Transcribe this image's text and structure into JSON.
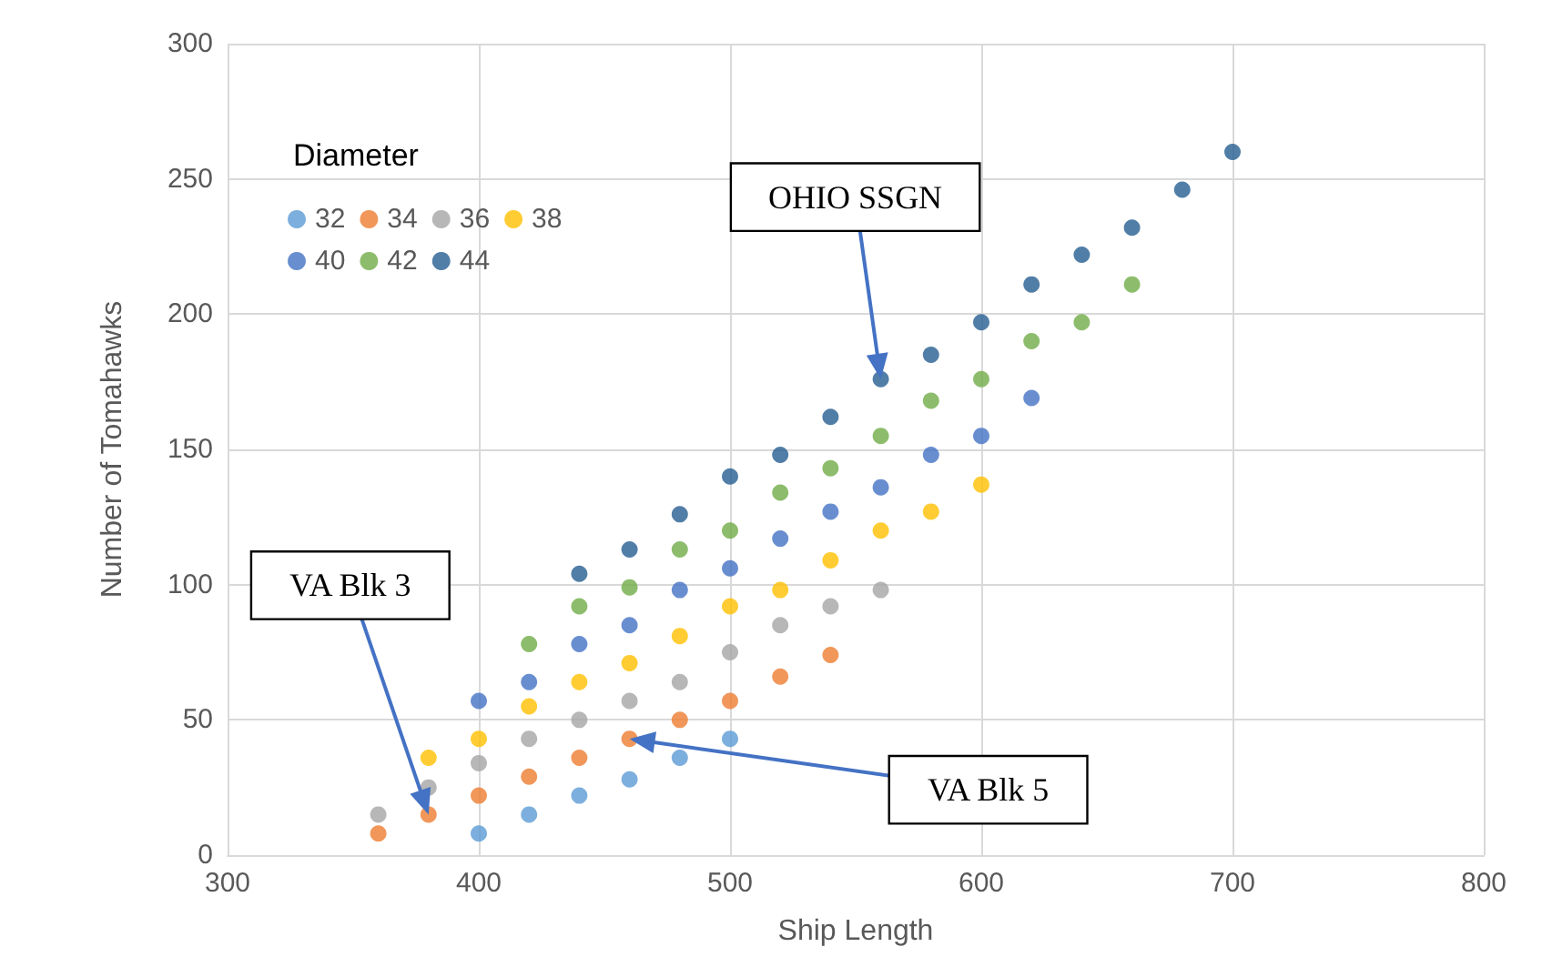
{
  "chart_data": {
    "type": "scatter",
    "xlabel": "Ship Length",
    "ylabel": "Number of Tomahawks",
    "legend_title": "Diameter",
    "xlim": [
      300,
      800
    ],
    "xticks": [
      300,
      400,
      500,
      600,
      700,
      800
    ],
    "ylim": [
      0,
      300
    ],
    "yticks": [
      0,
      50,
      100,
      150,
      200,
      250,
      300
    ],
    "grid": true,
    "legend": "top left",
    "marker": "circle",
    "series": [
      {
        "name": "32",
        "color": "#5b9bd5",
        "x": [
          400,
          420,
          440,
          460,
          480,
          500
        ],
        "values": [
          8,
          15,
          22,
          28,
          36,
          43
        ]
      },
      {
        "name": "34",
        "color": "#ed7d31",
        "x": [
          360,
          380,
          400,
          420,
          440,
          460,
          480,
          500,
          520,
          540
        ],
        "values": [
          8,
          15,
          22,
          29,
          36,
          43,
          50,
          57,
          66,
          74
        ]
      },
      {
        "name": "36",
        "color": "#a5a5a5",
        "x": [
          360,
          380,
          400,
          420,
          440,
          460,
          480,
          500,
          520,
          540,
          560
        ],
        "values": [
          15,
          25,
          34,
          43,
          50,
          57,
          64,
          75,
          85,
          92,
          98
        ]
      },
      {
        "name": "38",
        "color": "#ffc000",
        "x": [
          380,
          400,
          420,
          440,
          460,
          480,
          500,
          520,
          540,
          560,
          580,
          600
        ],
        "values": [
          36,
          43,
          55,
          64,
          71,
          81,
          92,
          98,
          109,
          120,
          127,
          137
        ]
      },
      {
        "name": "40",
        "color": "#4472c4",
        "x": [
          400,
          420,
          440,
          460,
          480,
          500,
          520,
          540,
          560,
          580,
          600,
          620
        ],
        "values": [
          57,
          64,
          78,
          85,
          98,
          106,
          117,
          127,
          136,
          148,
          155,
          169
        ]
      },
      {
        "name": "42",
        "color": "#70ad47",
        "x": [
          420,
          440,
          460,
          480,
          500,
          520,
          540,
          560,
          580,
          600,
          620,
          640,
          660
        ],
        "values": [
          78,
          92,
          99,
          113,
          120,
          134,
          143,
          155,
          168,
          176,
          190,
          197,
          211
        ]
      },
      {
        "name": "44",
        "color": "#255e91",
        "x": [
          440,
          460,
          480,
          500,
          520,
          540,
          560,
          580,
          600,
          620,
          640,
          660,
          680,
          700
        ],
        "values": [
          104,
          113,
          126,
          140,
          148,
          162,
          176,
          185,
          197,
          211,
          222,
          232,
          246,
          260
        ]
      }
    ],
    "annotations": [
      {
        "text": "OHIO SSGN",
        "x": 560,
        "y": 176
      },
      {
        "text": "VA Blk 3",
        "x": 380,
        "y": 15
      },
      {
        "text": "VA Blk 5",
        "x": 460,
        "y": 43
      }
    ]
  }
}
